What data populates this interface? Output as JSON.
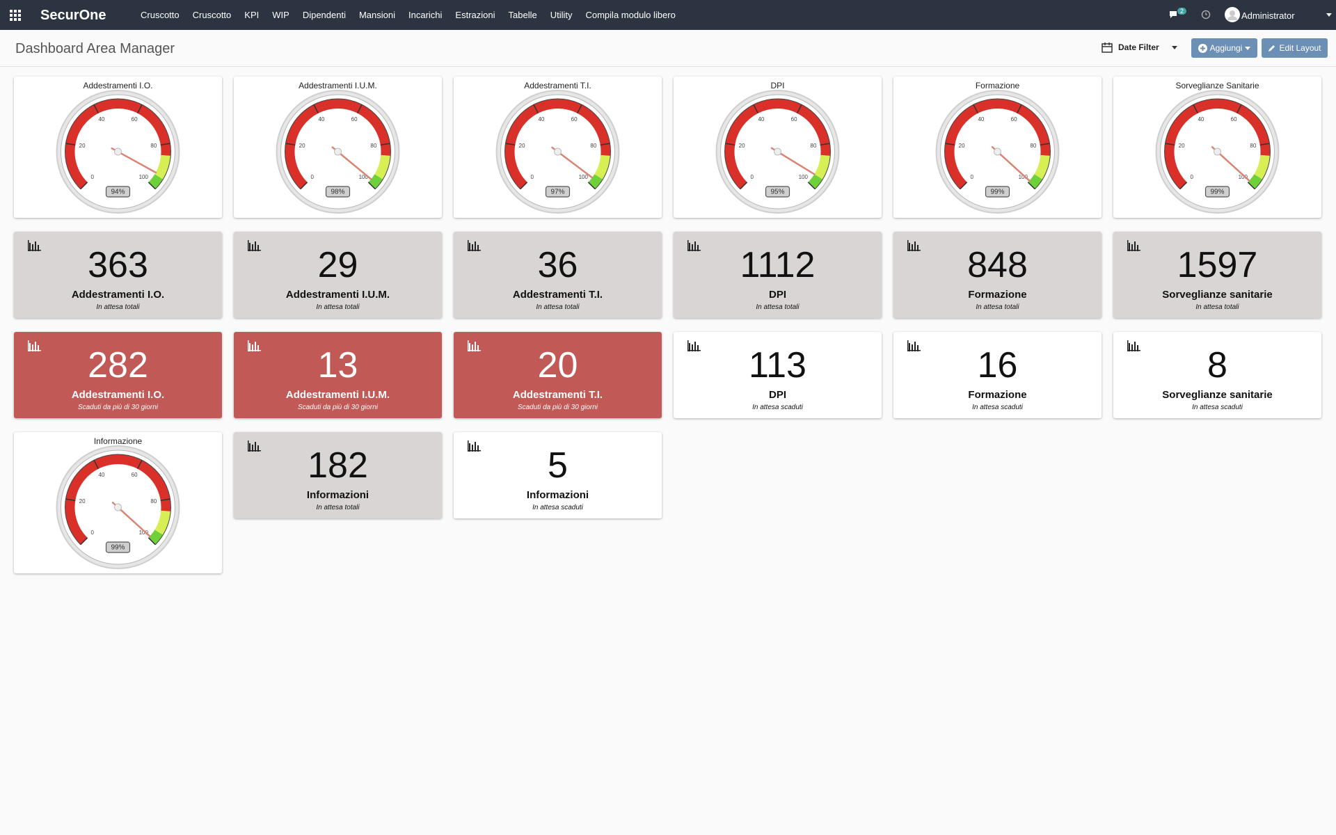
{
  "navbar": {
    "brand": "SecurOne",
    "menu": [
      "Cruscotto",
      "Cruscotto",
      "KPI",
      "WIP",
      "Dipendenti",
      "Mansioni",
      "Incarichi",
      "Estrazioni",
      "Tabelle",
      "Utility",
      "Compila modulo libero"
    ],
    "notifications": 2,
    "user": "Administrator"
  },
  "header": {
    "title": "Dashboard Area Manager",
    "date_filter": "Date Filter",
    "buttons": [
      "Aggiungi",
      "Edit Layout"
    ]
  },
  "gauge_scale": {
    "min": 0,
    "max": 100,
    "ticks": [
      0,
      20,
      40,
      60,
      80,
      100
    ]
  },
  "widgets": [
    {
      "kind": "gauge",
      "title": "Addestramenti I.O.",
      "value": 94,
      "value_label": "94%"
    },
    {
      "kind": "gauge",
      "title": "Addestramenti I.U.M.",
      "value": 98,
      "value_label": "98%"
    },
    {
      "kind": "gauge",
      "title": "Addestramenti T.I.",
      "value": 97,
      "value_label": "97%"
    },
    {
      "kind": "gauge",
      "title": "DPI",
      "value": 95,
      "value_label": "95%"
    },
    {
      "kind": "gauge",
      "title": "Formazione",
      "value": 99,
      "value_label": "99%"
    },
    {
      "kind": "gauge",
      "title": "Sorveglianze Sanitarie",
      "value": 99,
      "value_label": "99%"
    },
    {
      "kind": "stat",
      "value": 363,
      "title": "Addestramenti I.O.",
      "subtitle": "In attesa totali",
      "color": "#dad5d5"
    },
    {
      "kind": "stat",
      "value": 29,
      "title": "Addestramenti I.U.M.",
      "subtitle": "In attesa totali",
      "color": "#dad5d5"
    },
    {
      "kind": "stat",
      "value": 36,
      "title": "Addestramenti T.I.",
      "subtitle": "In attesa totali",
      "color": "#dad5d5"
    },
    {
      "kind": "stat",
      "value": 1112,
      "title": "DPI",
      "subtitle": "In attesa totali",
      "color": "#dad5d5"
    },
    {
      "kind": "stat",
      "value": 848,
      "title": "Formazione",
      "subtitle": "In attesa totali",
      "color": "#dad5d5"
    },
    {
      "kind": "stat",
      "value": 1597,
      "title": "Sorveglianze sanitarie",
      "subtitle": "In attesa totali",
      "color": "#dad5d5"
    },
    {
      "kind": "stat",
      "value": 282,
      "title": "Addestramenti I.O.",
      "subtitle": "Scaduti da più di 30 giorni",
      "color": "#c15a56"
    },
    {
      "kind": "stat",
      "value": 13,
      "title": "Addestramenti I.U.M.",
      "subtitle": "Scaduti da più di 30 giorni",
      "color": "#c15a56"
    },
    {
      "kind": "stat",
      "value": 20,
      "title": "Addestramenti T.I.",
      "subtitle": "Scaduti da più di 30 giorni",
      "color": "#c15a56"
    },
    {
      "kind": "stat",
      "value": 113,
      "title": "DPI",
      "subtitle": "In attesa scaduti",
      "color": "#ffffff"
    },
    {
      "kind": "stat",
      "value": 16,
      "title": "Formazione",
      "subtitle": "In attesa scaduti",
      "color": "#ffffff"
    },
    {
      "kind": "stat",
      "value": 8,
      "title": "Sorveglianze sanitarie",
      "subtitle": "In attesa scaduti",
      "color": "#ffffff"
    },
    {
      "kind": "gauge",
      "title": "Informazione",
      "value": 99,
      "value_label": "99%"
    },
    {
      "kind": "stat",
      "value": 182,
      "title": "Informazioni",
      "subtitle": "In attesa totali",
      "color": "#dad5d5"
    },
    {
      "kind": "stat",
      "value": 5,
      "title": "Informazioni",
      "subtitle": "In attesa scaduti",
      "color": "#ffffff"
    }
  ]
}
